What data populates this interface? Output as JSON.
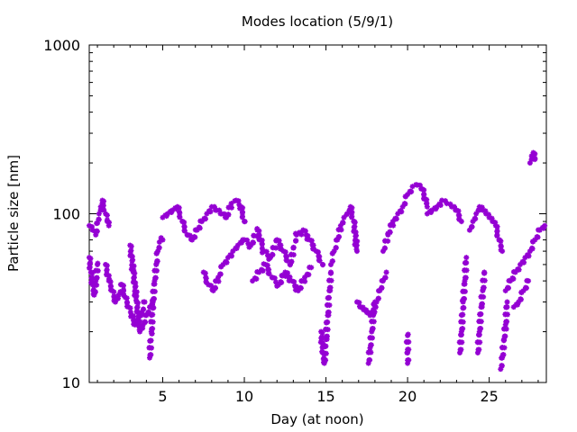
{
  "chart_data": {
    "type": "scatter",
    "title": "Modes location (5/9/1)",
    "xlabel": "Day (at noon)",
    "ylabel": "Particle size [nm]",
    "xlim": [
      0.5,
      28.5
    ],
    "ylim": [
      10,
      1000
    ],
    "y_scale": "log",
    "x_ticks": [
      5,
      10,
      15,
      20,
      25
    ],
    "y_ticks": [
      10,
      100,
      1000
    ],
    "grid": false,
    "series_color": "#9400d3",
    "marker": "star",
    "series": [
      {
        "name": "",
        "segments": [
          {
            "x": [
              0.5,
              0.7,
              0.9,
              1.0,
              1.1,
              1.2,
              1.3,
              1.4,
              1.5,
              1.6,
              1.7
            ],
            "y": [
              85,
              80,
              75,
              88,
              100,
              110,
              120,
              105,
              100,
              90,
              85
            ]
          },
          {
            "x": [
              0.5,
              0.6,
              0.7,
              0.8,
              0.9,
              1.0
            ],
            "y": [
              55,
              45,
              38,
              33,
              40,
              50
            ]
          },
          {
            "x": [
              1.5,
              1.7,
              1.9,
              2.1,
              2.3,
              2.5,
              2.7,
              2.9,
              3.1,
              3.3,
              3.5,
              3.7,
              3.9
            ],
            "y": [
              50,
              40,
              35,
              30,
              33,
              38,
              32,
              28,
              25,
              22,
              24,
              26,
              30
            ]
          },
          {
            "x": [
              3.0,
              3.2,
              3.4,
              3.6,
              3.8,
              4.0,
              4.2,
              4.4
            ],
            "y": [
              65,
              45,
              30,
              20,
              22,
              25,
              28,
              30
            ]
          },
          {
            "x": [
              4.2,
              4.3,
              4.4,
              4.5,
              4.6,
              4.7,
              4.8,
              4.9,
              5.0
            ],
            "y": [
              14,
              20,
              30,
              40,
              50,
              60,
              68,
              72,
              70
            ]
          },
          {
            "x": [
              5.0,
              5.3,
              5.6,
              5.9,
              6.2,
              6.5,
              6.8,
              7.1,
              7.4,
              7.7,
              8.0,
              8.3,
              8.6,
              8.9,
              9.2,
              9.5,
              9.8,
              10.0
            ],
            "y": [
              95,
              100,
              105,
              110,
              90,
              75,
              70,
              80,
              90,
              100,
              110,
              105,
              100,
              95,
              115,
              120,
              110,
              90
            ]
          },
          {
            "x": [
              7.5,
              7.8,
              8.1,
              8.4,
              8.7,
              9.0,
              9.3,
              9.6,
              9.9
            ],
            "y": [
              45,
              38,
              35,
              42,
              50,
              55,
              60,
              65,
              70
            ]
          },
          {
            "x": [
              10.0,
              10.4,
              10.8,
              11.2,
              11.6,
              12.0,
              12.4,
              12.8,
              13.2,
              13.6,
              14.0,
              14.4,
              14.8
            ],
            "y": [
              70,
              65,
              80,
              60,
              55,
              70,
              60,
              50,
              75,
              80,
              70,
              60,
              50
            ]
          },
          {
            "x": [
              10.5,
              10.9,
              11.3,
              11.7,
              12.1,
              12.5,
              12.9,
              13.3,
              13.7,
              14.1
            ],
            "y": [
              40,
              45,
              50,
              42,
              38,
              45,
              40,
              35,
              42,
              48
            ]
          },
          {
            "x": [
              14.7,
              14.8,
              14.9,
              15.0,
              15.1,
              15.2,
              15.3
            ],
            "y": [
              20,
              15,
              13,
              18,
              25,
              35,
              45
            ]
          },
          {
            "x": [
              15.3,
              15.5,
              15.7,
              15.9,
              16.1,
              16.3,
              16.5,
              16.7,
              16.9
            ],
            "y": [
              50,
              60,
              70,
              85,
              95,
              100,
              110,
              90,
              60
            ]
          },
          {
            "x": [
              16.9,
              17.1,
              17.3,
              17.5,
              17.7,
              17.9,
              18.1,
              18.3,
              18.5,
              18.7
            ],
            "y": [
              30,
              28,
              27,
              26,
              25,
              27,
              30,
              35,
              40,
              45
            ]
          },
          {
            "x": [
              17.6,
              17.7,
              17.8,
              17.9,
              18.0
            ],
            "y": [
              13,
              16,
              20,
              25,
              30
            ]
          },
          {
            "x": [
              18.5,
              18.8,
              19.1,
              19.4,
              19.7,
              20.0,
              20.3,
              20.6,
              20.9,
              21.2
            ],
            "y": [
              60,
              75,
              90,
              100,
              110,
              130,
              145,
              148,
              140,
              110
            ]
          },
          {
            "x": [
              20.0,
              20.0,
              20.0
            ],
            "y": [
              13,
              15,
              19
            ]
          },
          {
            "x": [
              21.2,
              21.5,
              21.8,
              22.1,
              22.4,
              22.7,
              23.0,
              23.3
            ],
            "y": [
              100,
              105,
              110,
              120,
              115,
              110,
              105,
              90
            ]
          },
          {
            "x": [
              23.2,
              23.3,
              23.4,
              23.5,
              23.6
            ],
            "y": [
              15,
              20,
              30,
              40,
              55
            ]
          },
          {
            "x": [
              23.8,
              24.0,
              24.2,
              24.4,
              24.6,
              24.8,
              25.0,
              25.2,
              25.4,
              25.6,
              25.8
            ],
            "y": [
              80,
              90,
              100,
              110,
              105,
              100,
              95,
              90,
              85,
              70,
              60
            ]
          },
          {
            "x": [
              24.3,
              24.4,
              24.5,
              24.6,
              24.7
            ],
            "y": [
              15,
              20,
              28,
              35,
              45
            ]
          },
          {
            "x": [
              25.7,
              25.8,
              25.9,
              26.0,
              26.1
            ],
            "y": [
              12,
              14,
              18,
              22,
              30
            ]
          },
          {
            "x": [
              26.0,
              26.3,
              26.6,
              26.9,
              27.2,
              27.5,
              27.8,
              28.1,
              28.4
            ],
            "y": [
              35,
              40,
              45,
              50,
              55,
              60,
              70,
              80,
              85
            ]
          },
          {
            "x": [
              27.5,
              27.6,
              27.7,
              27.8
            ],
            "y": [
              200,
              220,
              230,
              210
            ]
          },
          {
            "x": [
              26.5,
              26.8,
              27.1,
              27.4
            ],
            "y": [
              28,
              30,
              35,
              40
            ]
          }
        ]
      }
    ]
  }
}
